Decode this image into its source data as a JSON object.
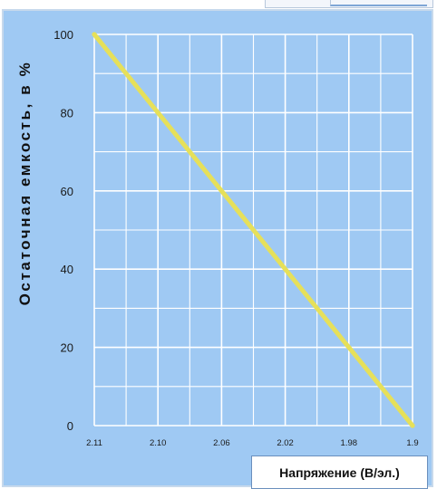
{
  "chart_data": {
    "type": "line",
    "title": "",
    "xlabel": "Напряжение (В/эл.)",
    "ylabel": "Остаточная емкость, в %",
    "x_tick_labels": [
      "2.11",
      "2.10",
      "2.06",
      "2.02",
      "1.98",
      "1.9"
    ],
    "y_tick_labels": [
      "0",
      "20",
      "40",
      "60",
      "80",
      "100"
    ],
    "y_ticks": [
      0,
      20,
      40,
      60,
      80,
      100
    ],
    "ylim": [
      0,
      100
    ],
    "grid": true,
    "series": [
      {
        "values": [
          100,
          80,
          60,
          40,
          20,
          0
        ],
        "color": "#e6e05a"
      }
    ]
  },
  "colors": {
    "plot_background": "#9fc9f3",
    "grid": "#ffffff",
    "line": "#e6e05a"
  }
}
